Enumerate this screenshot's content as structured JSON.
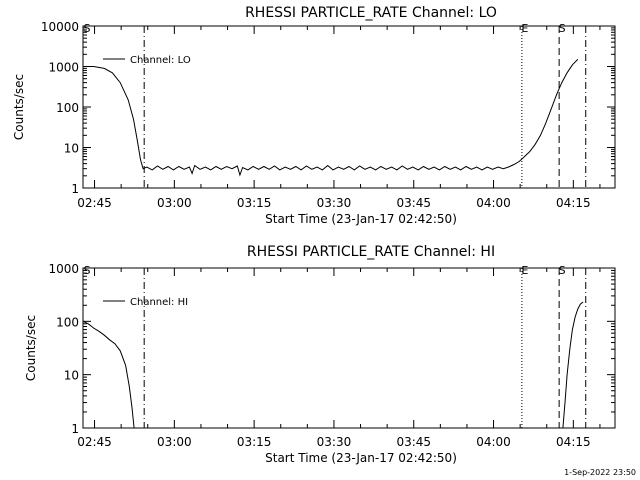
{
  "footer": {
    "timestamp": "1-Sep-2022 23:50"
  },
  "chart_data": [
    {
      "type": "line",
      "title": "RHESSI PARTICLE_RATE Channel: LO",
      "xlabel": "Start Time (23-Jan-17 02:42:50)",
      "ylabel": "Counts/sec",
      "x_unit": "minutes since 02:42:50",
      "xlim": [
        0,
        100
      ],
      "ylim": [
        1,
        10000
      ],
      "yscale": "log",
      "x_ticks": [
        {
          "x": 2.17,
          "label": "02:45"
        },
        {
          "x": 17.17,
          "label": "03:00"
        },
        {
          "x": 32.17,
          "label": "03:15"
        },
        {
          "x": 47.17,
          "label": "03:30"
        },
        {
          "x": 62.17,
          "label": "03:45"
        },
        {
          "x": 77.17,
          "label": "04:00"
        },
        {
          "x": 92.17,
          "label": "04:15"
        }
      ],
      "y_ticks": [
        {
          "y": 1,
          "label": "1"
        },
        {
          "y": 10,
          "label": "10"
        },
        {
          "y": 100,
          "label": "100"
        },
        {
          "y": 1000,
          "label": "1000"
        },
        {
          "y": 10000,
          "label": "10000"
        }
      ],
      "legend": {
        "position": "top-left",
        "entries": [
          "Channel: LO"
        ]
      },
      "series": [
        {
          "name": "Channel: LO",
          "points": [
            [
              0,
              1000
            ],
            [
              2,
              1000
            ],
            [
              4,
              900
            ],
            [
              5.5,
              700
            ],
            [
              7,
              400
            ],
            [
              8.5,
              150
            ],
            [
              9.5,
              50
            ],
            [
              10.2,
              15
            ],
            [
              10.8,
              5
            ],
            [
              11.3,
              3
            ],
            [
              12,
              3.3
            ],
            [
              13,
              2.8
            ],
            [
              14,
              3.5
            ],
            [
              15,
              2.9
            ],
            [
              16,
              3.4
            ],
            [
              17,
              2.8
            ],
            [
              18,
              3.4
            ],
            [
              19,
              2.9
            ],
            [
              20,
              3.3
            ],
            [
              20.5,
              2.3
            ],
            [
              21,
              3.6
            ],
            [
              22,
              2.9
            ],
            [
              23,
              3.3
            ],
            [
              24,
              2.8
            ],
            [
              25,
              3.4
            ],
            [
              26,
              2.9
            ],
            [
              27,
              3.4
            ],
            [
              28,
              3.0
            ],
            [
              29,
              3.5
            ],
            [
              29.5,
              2.1
            ],
            [
              30,
              3.2
            ],
            [
              31,
              2.8
            ],
            [
              32,
              3.4
            ],
            [
              33,
              2.9
            ],
            [
              34,
              3.4
            ],
            [
              35,
              2.9
            ],
            [
              36,
              3.5
            ],
            [
              37,
              2.8
            ],
            [
              38,
              3.3
            ],
            [
              39,
              2.9
            ],
            [
              40,
              3.4
            ],
            [
              41,
              2.8
            ],
            [
              42,
              3.5
            ],
            [
              43,
              2.9
            ],
            [
              44,
              3.3
            ],
            [
              45,
              2.8
            ],
            [
              46,
              3.6
            ],
            [
              47,
              2.8
            ],
            [
              48,
              3.3
            ],
            [
              49,
              2.9
            ],
            [
              50,
              3.4
            ],
            [
              51,
              2.8
            ],
            [
              52,
              3.5
            ],
            [
              53,
              2.9
            ],
            [
              54,
              3.3
            ],
            [
              55,
              2.8
            ],
            [
              56,
              3.4
            ],
            [
              57,
              2.9
            ],
            [
              58,
              3.3
            ],
            [
              59,
              2.8
            ],
            [
              60,
              3.5
            ],
            [
              61,
              2.9
            ],
            [
              62,
              3.3
            ],
            [
              63,
              2.8
            ],
            [
              64,
              3.4
            ],
            [
              65,
              2.9
            ],
            [
              66,
              3.3
            ],
            [
              67,
              2.8
            ],
            [
              68,
              3.4
            ],
            [
              69,
              2.9
            ],
            [
              70,
              3.3
            ],
            [
              71,
              2.8
            ],
            [
              72,
              3.4
            ],
            [
              73,
              2.9
            ],
            [
              74,
              3.3
            ],
            [
              75,
              2.8
            ],
            [
              76,
              3.3
            ],
            [
              77,
              2.9
            ],
            [
              78,
              3.3
            ],
            [
              79,
              3.0
            ],
            [
              80,
              3.3
            ],
            [
              81,
              3.8
            ],
            [
              82,
              4.5
            ],
            [
              83,
              6
            ],
            [
              84,
              8
            ],
            [
              85,
              12
            ],
            [
              86,
              20
            ],
            [
              87,
              40
            ],
            [
              88,
              90
            ],
            [
              89,
              200
            ],
            [
              90,
              400
            ],
            [
              91,
              700
            ],
            [
              92,
              1100
            ],
            [
              93,
              1500
            ]
          ]
        }
      ],
      "vlines": [
        {
          "x": 11.5,
          "style": "dashdot",
          "label": ""
        },
        {
          "x": 82.5,
          "style": "dotted",
          "label": "E"
        },
        {
          "x": 89.5,
          "style": "dashed",
          "label": "S"
        },
        {
          "x": 94.5,
          "style": "dashdot",
          "label": ""
        }
      ],
      "corner_label": "S"
    },
    {
      "type": "line",
      "title": "RHESSI PARTICLE_RATE Channel: HI",
      "xlabel": "Start Time (23-Jan-17 02:42:50)",
      "ylabel": "Counts/sec",
      "x_unit": "minutes since 02:42:50",
      "xlim": [
        0,
        100
      ],
      "ylim": [
        1,
        1000
      ],
      "yscale": "log",
      "x_ticks": [
        {
          "x": 2.17,
          "label": "02:45"
        },
        {
          "x": 17.17,
          "label": "03:00"
        },
        {
          "x": 32.17,
          "label": "03:15"
        },
        {
          "x": 47.17,
          "label": "03:30"
        },
        {
          "x": 62.17,
          "label": "03:45"
        },
        {
          "x": 77.17,
          "label": "04:00"
        },
        {
          "x": 92.17,
          "label": "04:15"
        }
      ],
      "y_ticks": [
        {
          "y": 1,
          "label": "1"
        },
        {
          "y": 10,
          "label": "10"
        },
        {
          "y": 100,
          "label": "100"
        },
        {
          "y": 1000,
          "label": "1000"
        }
      ],
      "legend": {
        "position": "top-left",
        "entries": [
          "Channel: HI"
        ]
      },
      "series": [
        {
          "name": "Channel: HI",
          "points": [
            [
              0,
              100
            ],
            [
              1,
              90
            ],
            [
              2,
              75
            ],
            [
              3,
              65
            ],
            [
              4,
              55
            ],
            [
              5,
              45
            ],
            [
              6,
              38
            ],
            [
              7,
              28
            ],
            [
              8,
              15
            ],
            [
              8.7,
              6
            ],
            [
              9.2,
              2.5
            ],
            [
              9.6,
              1
            ]
          ]
        },
        {
          "name": "Channel: HI",
          "points": [
            [
              90.2,
              1
            ],
            [
              90.6,
              3
            ],
            [
              91,
              10
            ],
            [
              91.5,
              30
            ],
            [
              92,
              70
            ],
            [
              92.5,
              120
            ],
            [
              93,
              170
            ],
            [
              93.5,
              210
            ],
            [
              94,
              230
            ]
          ]
        }
      ],
      "vlines": [
        {
          "x": 11.5,
          "style": "dashdot",
          "label": ""
        },
        {
          "x": 82.5,
          "style": "dotted",
          "label": "E"
        },
        {
          "x": 89.5,
          "style": "dashed",
          "label": "S"
        },
        {
          "x": 94.5,
          "style": "dashdot",
          "label": ""
        }
      ],
      "corner_label": "S"
    }
  ]
}
